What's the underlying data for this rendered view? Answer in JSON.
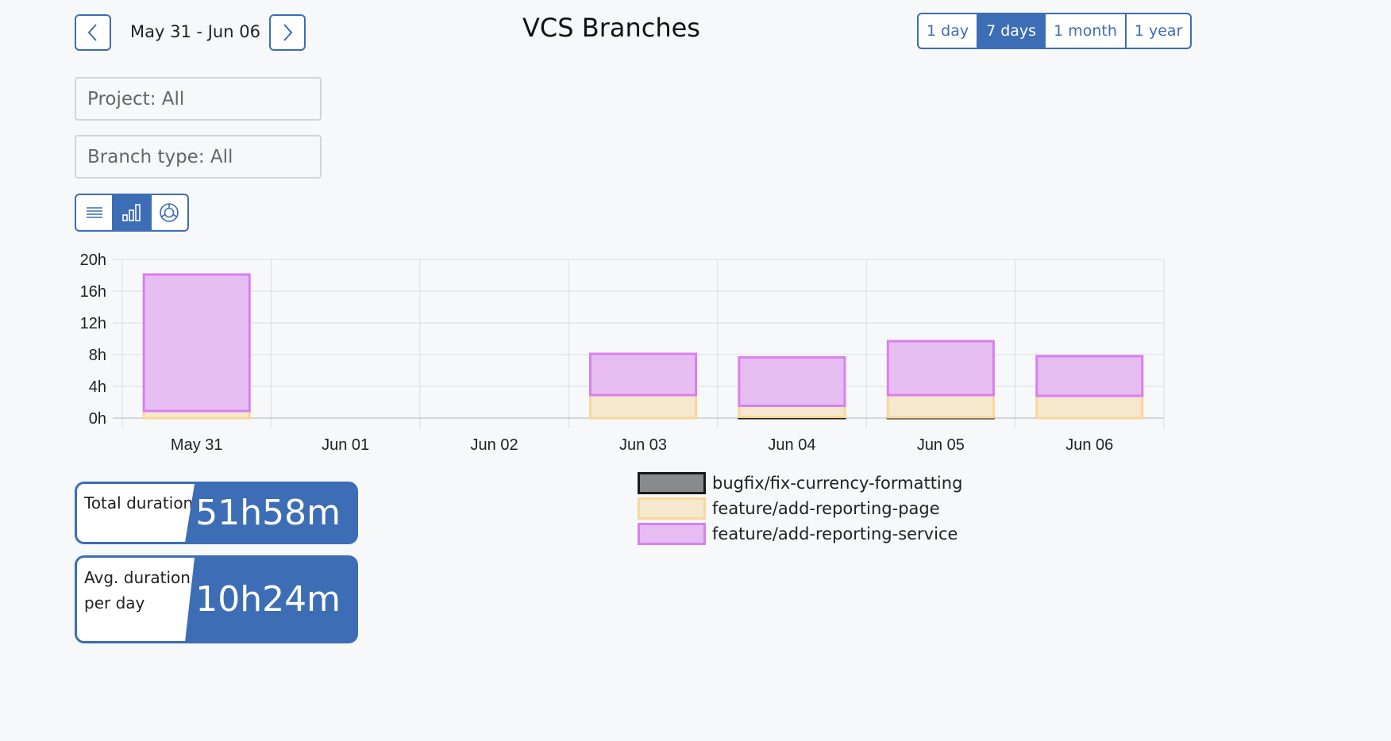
{
  "header": {
    "date_range": "May 31 - Jun 06",
    "title": "VCS Branches",
    "ranges": [
      "1 day",
      "7 days",
      "1 month",
      "1 year"
    ],
    "active_range": "7 days"
  },
  "filters": {
    "project": "Project: All",
    "branch_type": "Branch type: All"
  },
  "view_modes": {
    "items": [
      "list-icon",
      "bar-chart-icon",
      "pie-chart-icon"
    ],
    "active": "bar-chart-icon"
  },
  "stats": {
    "total_label": "Total duration",
    "total_value": "51h58m",
    "avg_label": "Avg. duration per day",
    "avg_value": "10h24m"
  },
  "colors": {
    "accent": "#3d6db5"
  },
  "chart_data": {
    "type": "bar",
    "stacked": true,
    "categories": [
      "May 31",
      "Jun 01",
      "Jun 02",
      "Jun 03",
      "Jun 04",
      "Jun 05",
      "Jun 06"
    ],
    "y_ticks": [
      "0h",
      "4h",
      "8h",
      "12h",
      "16h",
      "20h"
    ],
    "ylim": [
      0,
      20
    ],
    "y_unit": "hours",
    "grid": true,
    "legend_position": "bottom",
    "series": [
      {
        "name": "bugfix/fix-currency-formatting",
        "fill": "#888a8d",
        "stroke": "#1a1a1a",
        "values": [
          0,
          0,
          0,
          0,
          0.15,
          0.1,
          0
        ]
      },
      {
        "name": "feature/add-reporting-page",
        "fill": "#f6e8cf",
        "stroke": "#f9d79a",
        "values": [
          0.9,
          0,
          0,
          2.9,
          1.4,
          2.8,
          2.8
        ]
      },
      {
        "name": "feature/add-reporting-service",
        "fill": "#e6bdf1",
        "stroke": "#d97ff0",
        "values": [
          17.2,
          0,
          0,
          5.2,
          6.1,
          6.8,
          5.0
        ]
      }
    ]
  }
}
